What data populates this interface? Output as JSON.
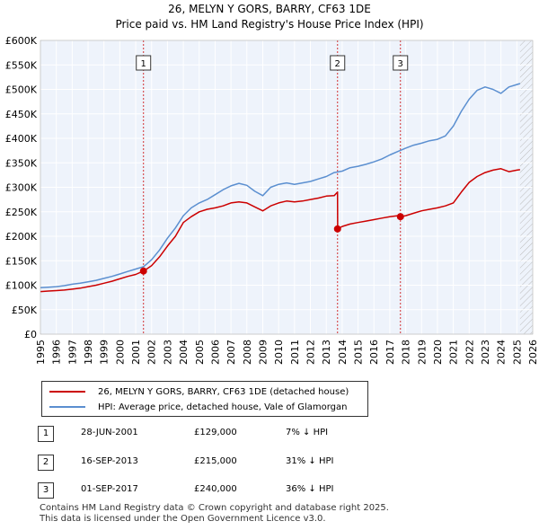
{
  "header": {
    "title_line1": "26, MELYN Y GORS, BARRY, CF63 1DE",
    "title_line2": "Price paid vs. HM Land Registry's House Price Index (HPI)"
  },
  "chart_data": {
    "type": "line",
    "title": "26, MELYN Y GORS, BARRY, CF63 1DE",
    "subtitle": "Price paid vs. HM Land Registry's House Price Index (HPI)",
    "xlabel": "",
    "ylabel": "",
    "xlim": [
      1995,
      2026
    ],
    "ylim": [
      0,
      600000
    ],
    "x_ticks": [
      "1995",
      "1996",
      "1997",
      "1998",
      "1999",
      "2000",
      "2001",
      "2002",
      "2003",
      "2004",
      "2005",
      "2006",
      "2007",
      "2008",
      "2009",
      "2010",
      "2011",
      "2012",
      "2013",
      "2014",
      "2015",
      "2016",
      "2017",
      "2018",
      "2019",
      "2020",
      "2021",
      "2022",
      "2023",
      "2024",
      "2025",
      "2026"
    ],
    "y_ticks": [
      {
        "value": 0,
        "label": "£0"
      },
      {
        "value": 50000,
        "label": "£50K"
      },
      {
        "value": 100000,
        "label": "£100K"
      },
      {
        "value": 150000,
        "label": "£150K"
      },
      {
        "value": 200000,
        "label": "£200K"
      },
      {
        "value": 250000,
        "label": "£250K"
      },
      {
        "value": 300000,
        "label": "£300K"
      },
      {
        "value": 350000,
        "label": "£350K"
      },
      {
        "value": 400000,
        "label": "£400K"
      },
      {
        "value": 450000,
        "label": "£450K"
      },
      {
        "value": 500000,
        "label": "£500K"
      },
      {
        "value": 550000,
        "label": "£550K"
      },
      {
        "value": 600000,
        "label": "£600K"
      }
    ],
    "grid": true,
    "hatched_future_from": 2025.2,
    "series": [
      {
        "name": "26, MELYN Y GORS, BARRY, CF63 1DE (detached house)",
        "color": "#cc0000",
        "x": [
          1995.0,
          1995.5,
          1996.0,
          1996.5,
          1997.0,
          1997.5,
          1998.0,
          1998.5,
          1999.0,
          1999.5,
          2000.0,
          2000.5,
          2001.0,
          2001.49,
          2001.5,
          2002.0,
          2002.5,
          2003.0,
          2003.5,
          2004.0,
          2004.5,
          2005.0,
          2005.5,
          2006.0,
          2006.5,
          2007.0,
          2007.5,
          2008.0,
          2008.5,
          2009.0,
          2009.5,
          2010.0,
          2010.5,
          2011.0,
          2011.5,
          2012.0,
          2012.5,
          2013.0,
          2013.5,
          2013.71,
          2013.72,
          2014.0,
          2014.5,
          2015.0,
          2015.5,
          2016.0,
          2016.5,
          2017.0,
          2017.5,
          2017.67,
          2017.68,
          2018.0,
          2018.5,
          2019.0,
          2019.5,
          2020.0,
          2020.5,
          2021.0,
          2021.5,
          2022.0,
          2022.5,
          2023.0,
          2023.5,
          2024.0,
          2024.5,
          2025.0,
          2025.2
        ],
        "values": [
          87000,
          88000,
          89000,
          90000,
          92000,
          94000,
          97000,
          100000,
          104000,
          108000,
          113000,
          118000,
          122000,
          129000,
          129000,
          140000,
          158000,
          180000,
          200000,
          228000,
          240000,
          250000,
          255000,
          258000,
          262000,
          268000,
          270000,
          268000,
          260000,
          252000,
          262000,
          268000,
          272000,
          270000,
          272000,
          275000,
          278000,
          282000,
          283000,
          290000,
          215000,
          220000,
          225000,
          228000,
          231000,
          234000,
          237000,
          240000,
          242000,
          244000,
          240000,
          242000,
          247000,
          252000,
          255000,
          258000,
          262000,
          268000,
          290000,
          310000,
          322000,
          330000,
          335000,
          338000,
          332000,
          335000,
          336000
        ]
      },
      {
        "name": "HPI: Average price, detached house, Vale of Glamorgan",
        "color": "#5b8fd0",
        "x": [
          1995.0,
          1995.5,
          1996.0,
          1996.5,
          1997.0,
          1997.5,
          1998.0,
          1998.5,
          1999.0,
          1999.5,
          2000.0,
          2000.5,
          2001.0,
          2001.5,
          2002.0,
          2002.5,
          2003.0,
          2003.5,
          2004.0,
          2004.5,
          2005.0,
          2005.5,
          2006.0,
          2006.5,
          2007.0,
          2007.5,
          2008.0,
          2008.5,
          2009.0,
          2009.5,
          2010.0,
          2010.5,
          2011.0,
          2011.5,
          2012.0,
          2012.5,
          2013.0,
          2013.5,
          2014.0,
          2014.5,
          2015.0,
          2015.5,
          2016.0,
          2016.5,
          2017.0,
          2017.5,
          2018.0,
          2018.5,
          2019.0,
          2019.5,
          2020.0,
          2020.5,
          2021.0,
          2021.5,
          2022.0,
          2022.5,
          2023.0,
          2023.5,
          2024.0,
          2024.5,
          2025.0,
          2025.2
        ],
        "values": [
          95000,
          96000,
          97000,
          99000,
          102000,
          104000,
          107000,
          110000,
          114000,
          118000,
          123000,
          128000,
          133000,
          138000,
          152000,
          172000,
          196000,
          217000,
          242000,
          258000,
          268000,
          275000,
          285000,
          295000,
          303000,
          308000,
          304000,
          292000,
          283000,
          300000,
          306000,
          309000,
          306000,
          309000,
          312000,
          317000,
          322000,
          330000,
          333000,
          340000,
          343000,
          347000,
          352000,
          358000,
          366000,
          373000,
          380000,
          386000,
          390000,
          395000,
          398000,
          405000,
          425000,
          455000,
          480000,
          498000,
          505000,
          500000,
          492000,
          505000,
          510000,
          512000
        ]
      }
    ],
    "transactions": [
      {
        "label": "1",
        "x": 2001.49,
        "price": 129000
      },
      {
        "label": "2",
        "x": 2013.71,
        "price": 215000
      },
      {
        "label": "3",
        "x": 2017.67,
        "price": 240000
      }
    ]
  },
  "legend": [
    {
      "label": "26, MELYN Y GORS, BARRY, CF63 1DE (detached house)",
      "color": "#cc0000"
    },
    {
      "label": "HPI: Average price, detached house, Vale of Glamorgan",
      "color": "#5b8fd0"
    }
  ],
  "transactions_table": [
    {
      "num": "1",
      "date": "28-JUN-2001",
      "price": "£129,000",
      "hpi": "7% ↓ HPI"
    },
    {
      "num": "2",
      "date": "16-SEP-2013",
      "price": "£215,000",
      "hpi": "31% ↓ HPI"
    },
    {
      "num": "3",
      "date": "01-SEP-2017",
      "price": "£240,000",
      "hpi": "36% ↓ HPI"
    }
  ],
  "footer": {
    "line1": "Contains HM Land Registry data © Crown copyright and database right 2025.",
    "line2": "This data is licensed under the Open Government Licence v3.0."
  }
}
